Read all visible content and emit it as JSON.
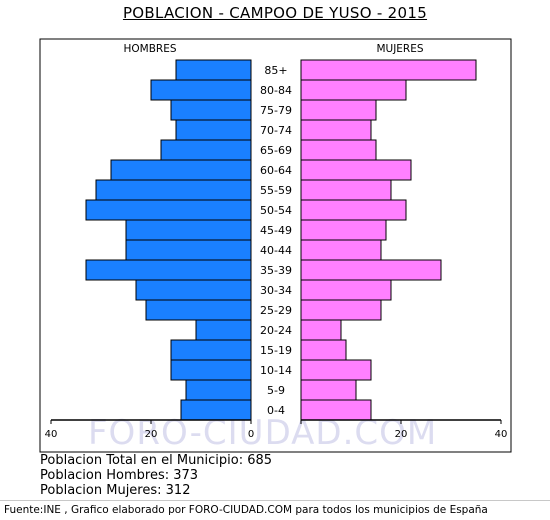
{
  "chart_data": {
    "type": "bar",
    "title": "POBLACION - CAMPOO DE YUSO - 2015",
    "categories": [
      "0-4",
      "5-9",
      "10-14",
      "15-19",
      "20-24",
      "25-29",
      "30-34",
      "35-39",
      "40-44",
      "45-49",
      "50-54",
      "55-59",
      "60-64",
      "65-69",
      "70-74",
      "75-79",
      "80-84",
      "85+"
    ],
    "series": [
      {
        "name": "HOMBRES",
        "color": "#1a80ff",
        "values": [
          14,
          13,
          16,
          16,
          11,
          21,
          23,
          33,
          25,
          25,
          33,
          31,
          28,
          18,
          15,
          16,
          20,
          15
        ]
      },
      {
        "name": "MUJERES",
        "color": "#ff80ff",
        "values": [
          14,
          11,
          14,
          9,
          8,
          16,
          18,
          28,
          16,
          17,
          21,
          18,
          22,
          15,
          14,
          15,
          21,
          35
        ]
      }
    ],
    "xlim": [
      -40,
      40
    ],
    "x_ticks": [
      "40",
      "20",
      "0",
      "20",
      "40"
    ],
    "x_tick_values": [
      -40,
      -20,
      0,
      20,
      40
    ],
    "grid": false
  },
  "watermark": "FORO-CIUDAD.COM",
  "stats": {
    "total": "Poblacion Total en el Municipio: 685",
    "hombres": "Poblacion Hombres: 373",
    "mujeres": "Poblacion Mujeres: 312"
  },
  "footer": "Fuente:INE , Grafico elaborado por FORO-CIUDAD.COM para todos los municipios de España"
}
